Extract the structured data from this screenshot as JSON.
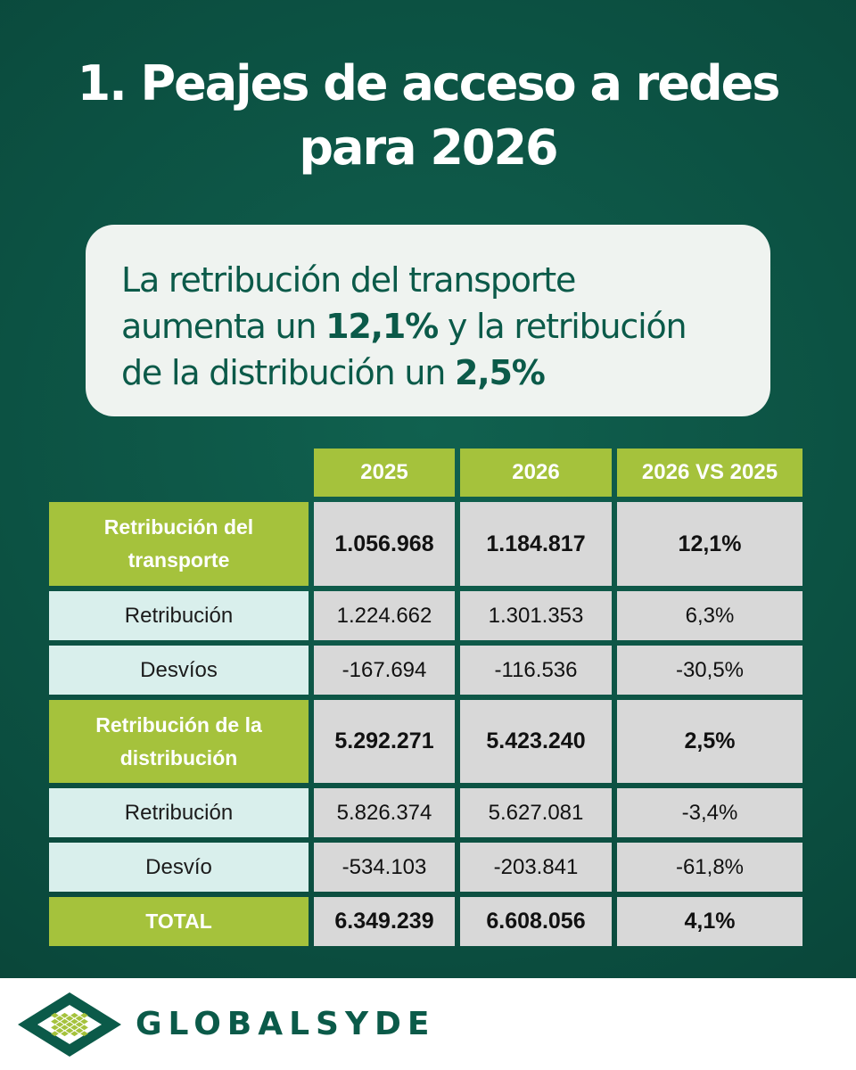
{
  "title": {
    "line1": "1. Peajes de acceso a redes",
    "line2": "para 2026"
  },
  "callout": {
    "l1": "La retribución del transporte",
    "l2a": "aumenta un ",
    "l2b": "12,1%",
    "l2c": " y la retribución",
    "l3a": "de la distribución un ",
    "l3b": "2,5%"
  },
  "table": {
    "headers": [
      "2025",
      "2026",
      "2026 VS 2025"
    ],
    "rows": [
      {
        "label_lines": [
          "Retribución del",
          "transporte"
        ],
        "values": [
          "1.056.968",
          "1.184.817",
          "12,1%"
        ]
      },
      {
        "label": "Retribución",
        "values": [
          "1.224.662",
          "1.301.353",
          "6,3%"
        ]
      },
      {
        "label": "Desvíos",
        "values": [
          "-167.694",
          "-116.536",
          "-30,5%"
        ]
      },
      {
        "label_lines": [
          "Retribución de la",
          "distribución"
        ],
        "values": [
          "5.292.271",
          "5.423.240",
          "2,5%"
        ]
      },
      {
        "label": "Retribución",
        "values": [
          "5.826.374",
          "5.627.081",
          "-3,4%"
        ]
      },
      {
        "label": "Desvío",
        "values": [
          "-534.103",
          "-203.841",
          "-61,8%"
        ]
      },
      {
        "label": "TOTAL",
        "values": [
          "6.349.239",
          "6.608.056",
          "4,1%"
        ]
      }
    ]
  },
  "footer": {
    "brand": "GLOBALSYDE",
    "logo_icon": "diamond-grid-logo-icon"
  },
  "colors": {
    "background": "#0b4d3f",
    "accent_green": "#a5c23c",
    "sub_row": "#d9efec",
    "value_cell": "#d8d8d8",
    "brand": "#0b5a49"
  }
}
